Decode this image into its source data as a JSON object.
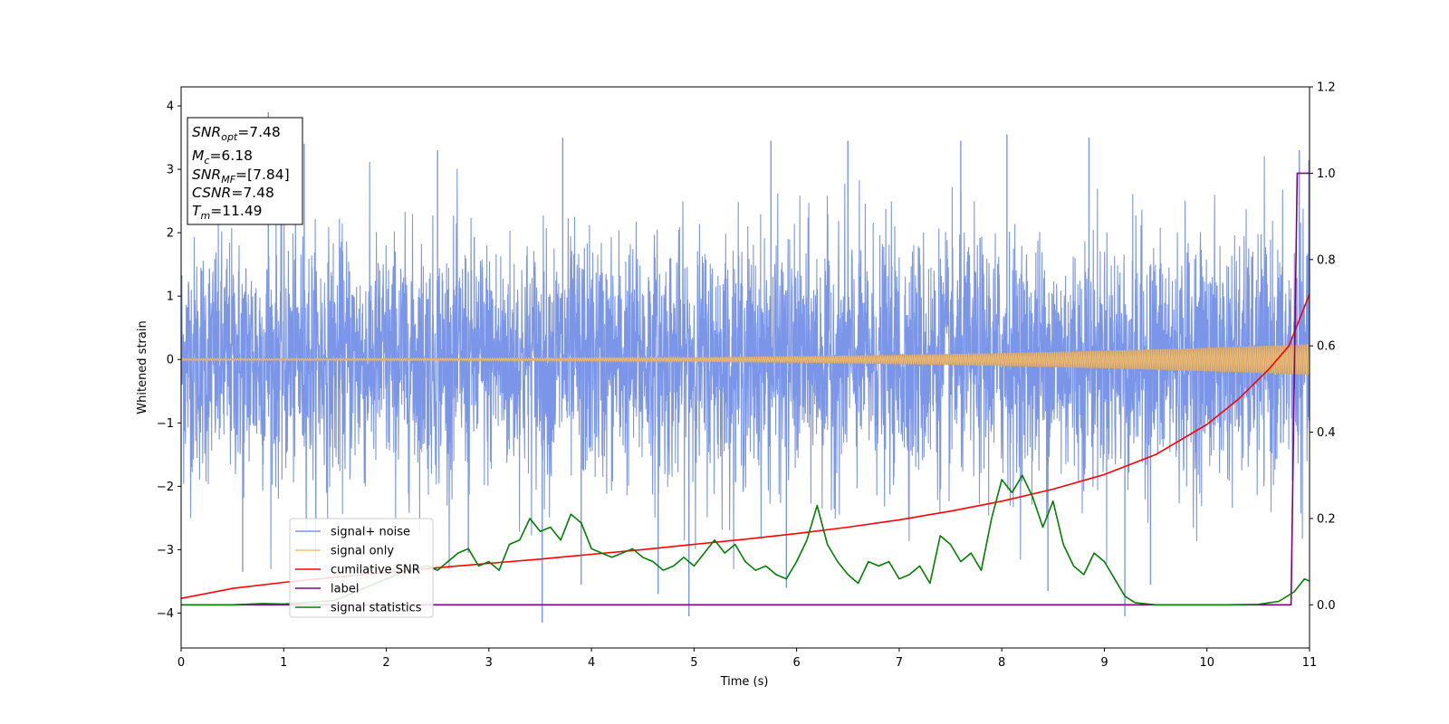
{
  "chart_data": {
    "type": "line",
    "xlabel": "Time (s)",
    "ylabel": "Whitened strain",
    "xlim": [
      0,
      11
    ],
    "ylim": [
      -4.55,
      4.3
    ],
    "y2lim": [
      -0.1,
      1.2
    ],
    "xticks": [
      "0",
      "1",
      "2",
      "3",
      "4",
      "5",
      "6",
      "7",
      "8",
      "9",
      "10",
      "11"
    ],
    "yticks": [
      "4",
      "3",
      "2",
      "1",
      "0",
      "−1",
      "−2",
      "−3",
      "−4"
    ],
    "y2ticks": [
      "1.2",
      "1.0",
      "0.8",
      "0.6",
      "0.4",
      "0.2",
      "0.0"
    ],
    "grid": false,
    "legend_position": "lower-left",
    "info_box": {
      "snr_opt_base": "SNR",
      "snr_opt_sub": "opt",
      "snr_opt_value": "=7.48",
      "mc_base": "M",
      "mc_sub": "c",
      "mc_value": "=6.18",
      "snr_mf_base": "SNR",
      "snr_mf_sub": "MF",
      "snr_mf_value": "=[7.84]",
      "csnr_base": "CSNR",
      "csnr_value": "=7.48",
      "tm_base": "T",
      "tm_sub": "m",
      "tm_value": "=11.49"
    },
    "series": [
      {
        "name": "signal+ noise",
        "axis": "left",
        "color": "#7b96e8",
        "kind": "noise",
        "spikes": [
          [
            0.85,
            3.9
          ],
          [
            3.52,
            -4.15
          ],
          [
            4.95,
            -4.05
          ],
          [
            9.2,
            -4.05
          ],
          [
            5.75,
            3.45
          ],
          [
            8.05,
            3.55
          ],
          [
            8.85,
            3.5
          ],
          [
            3.72,
            3.5
          ],
          [
            1.2,
            3.4
          ],
          [
            7.6,
            3.45
          ],
          [
            6.5,
            3.45
          ],
          [
            2.5,
            3.3
          ],
          [
            3.9,
            -3.55
          ],
          [
            4.65,
            -3.7
          ],
          [
            5.9,
            -3.6
          ],
          [
            8.45,
            -3.65
          ],
          [
            9.45,
            -3.55
          ],
          [
            10.9,
            3.3
          ],
          [
            0.6,
            -3.35
          ],
          [
            2.8,
            -3.05
          ]
        ]
      },
      {
        "name": "signal only",
        "axis": "left",
        "color": "#f5c070",
        "kind": "chirp",
        "amp_start": 0.015,
        "amp_end": 0.24,
        "amp_curve_exponent": 3
      },
      {
        "name": "cumilative SNR",
        "axis": "right",
        "color": "#ff0000",
        "x": [
          0,
          0.5,
          1,
          1.5,
          2,
          2.5,
          3,
          3.5,
          4,
          4.5,
          5,
          5.5,
          6,
          6.5,
          7,
          7.5,
          8,
          8.5,
          9,
          9.5,
          10,
          10.3,
          10.6,
          10.8,
          11
        ],
        "y": [
          0.015,
          0.038,
          0.052,
          0.064,
          0.075,
          0.086,
          0.096,
          0.106,
          0.117,
          0.128,
          0.14,
          0.152,
          0.165,
          0.18,
          0.197,
          0.217,
          0.24,
          0.268,
          0.302,
          0.348,
          0.418,
          0.475,
          0.545,
          0.6,
          0.72
        ]
      },
      {
        "name": "label",
        "axis": "right",
        "color": "#800080",
        "x": [
          0,
          10.82,
          10.88,
          11
        ],
        "y": [
          0,
          0,
          1,
          1
        ]
      },
      {
        "name": "signal statistics",
        "axis": "right",
        "color": "#008000",
        "x": [
          0,
          0.5,
          0.8,
          1.0,
          1.2,
          1.5,
          1.8,
          2.0,
          2.2,
          2.4,
          2.5,
          2.6,
          2.7,
          2.8,
          2.9,
          3.0,
          3.1,
          3.2,
          3.3,
          3.4,
          3.5,
          3.6,
          3.7,
          3.8,
          3.9,
          4.0,
          4.1,
          4.2,
          4.3,
          4.4,
          4.5,
          4.6,
          4.7,
          4.8,
          4.9,
          5.0,
          5.1,
          5.2,
          5.3,
          5.4,
          5.5,
          5.6,
          5.7,
          5.8,
          5.9,
          6.0,
          6.1,
          6.2,
          6.3,
          6.4,
          6.5,
          6.6,
          6.7,
          6.8,
          6.9,
          7.0,
          7.1,
          7.2,
          7.3,
          7.4,
          7.5,
          7.6,
          7.7,
          7.8,
          7.9,
          8.0,
          8.1,
          8.2,
          8.3,
          8.4,
          8.5,
          8.6,
          8.7,
          8.8,
          8.9,
          9.0,
          9.1,
          9.2,
          9.3,
          9.5,
          9.8,
          10.2,
          10.5,
          10.7,
          10.85,
          10.95,
          11.0
        ],
        "y": [
          0.0,
          0.0,
          0.003,
          0.002,
          0.005,
          0.01,
          0.04,
          0.06,
          0.08,
          0.09,
          0.08,
          0.1,
          0.12,
          0.13,
          0.09,
          0.1,
          0.08,
          0.14,
          0.15,
          0.2,
          0.17,
          0.18,
          0.15,
          0.21,
          0.19,
          0.13,
          0.12,
          0.11,
          0.12,
          0.13,
          0.11,
          0.1,
          0.08,
          0.09,
          0.11,
          0.09,
          0.12,
          0.15,
          0.12,
          0.14,
          0.1,
          0.08,
          0.09,
          0.07,
          0.06,
          0.1,
          0.15,
          0.23,
          0.14,
          0.1,
          0.07,
          0.05,
          0.1,
          0.09,
          0.1,
          0.06,
          0.07,
          0.09,
          0.05,
          0.16,
          0.14,
          0.1,
          0.12,
          0.08,
          0.2,
          0.29,
          0.26,
          0.3,
          0.25,
          0.18,
          0.24,
          0.14,
          0.09,
          0.07,
          0.12,
          0.1,
          0.06,
          0.02,
          0.005,
          0.0,
          0.0,
          0.0,
          0.001,
          0.008,
          0.03,
          0.06,
          0.055
        ]
      }
    ]
  }
}
